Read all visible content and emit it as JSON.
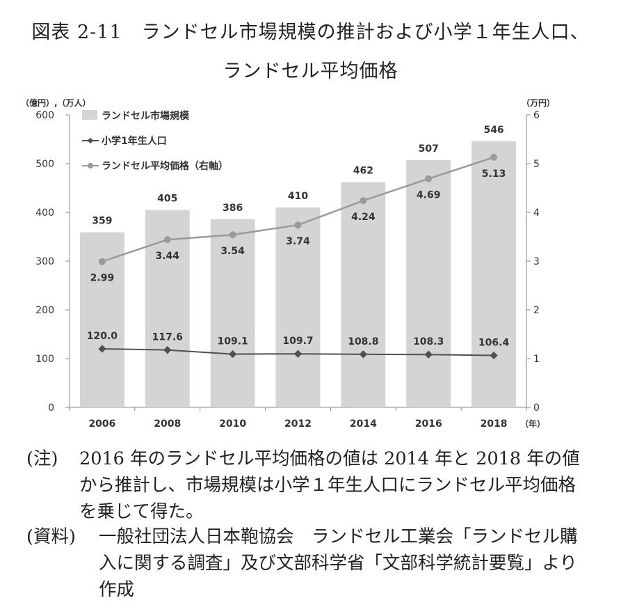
{
  "title_line1": "図表 2-11　ランドセル市場規模の推計および小学１年生人口、",
  "title_line2": "ランドセル平均価格",
  "chart_data": {
    "type": "bar",
    "categories": [
      "2006",
      "2008",
      "2010",
      "2012",
      "2014",
      "2016",
      "2018"
    ],
    "x_unit": "（年）",
    "left_axis_unit": "（億円）,（万人）",
    "right_axis_unit": "（万円）",
    "left_ylim": [
      0,
      600
    ],
    "left_ticks": [
      "0",
      "100",
      "200",
      "300",
      "400",
      "500",
      "600"
    ],
    "right_ylim": [
      0,
      6
    ],
    "right_ticks": [
      "0",
      "1",
      "2",
      "3",
      "4",
      "5",
      "6"
    ],
    "series": [
      {
        "name": "ランドセル市場規模",
        "kind": "bar",
        "axis": "left",
        "color": "#d4d4d4",
        "values": [
          359,
          405,
          386,
          410,
          462,
          507,
          546
        ],
        "labels": [
          "359",
          "405",
          "386",
          "410",
          "462",
          "507",
          "546"
        ]
      },
      {
        "name": "小学1年生人口",
        "kind": "line",
        "axis": "left",
        "color": "#505050",
        "values": [
          120.0,
          117.6,
          109.1,
          109.7,
          108.8,
          108.3,
          106.4
        ],
        "labels": [
          "120.0",
          "117.6",
          "109.1",
          "109.7",
          "108.8",
          "108.3",
          "106.4"
        ]
      },
      {
        "name": "ランドセル平均価格（右軸）",
        "kind": "line",
        "axis": "right",
        "color": "#9a9a9a",
        "values": [
          2.99,
          3.44,
          3.54,
          3.74,
          4.24,
          4.69,
          5.13
        ],
        "labels": [
          "2.99",
          "3.44",
          "3.54",
          "3.74",
          "4.24",
          "4.69",
          "5.13"
        ]
      }
    ],
    "legend_position": "top-left",
    "grid": false
  },
  "notes": [
    {
      "label": "(注)",
      "text": "2016 年のランドセル平均価格の値は 2014 年と 2018 年の値から推計し、市場規模は小学１年生人口にランドセル平均価格を乗じて得た。"
    },
    {
      "label": "(資料)",
      "text": "一般社団法人日本鞄協会　ランドセル工業会「ランドセル購入に関する調査」及び文部科学省「文部科学統計要覧」より作成"
    }
  ]
}
